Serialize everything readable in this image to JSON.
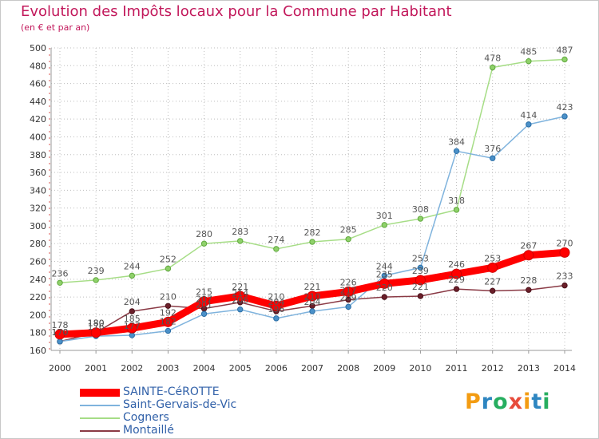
{
  "header": {
    "title": "Evolution des Impôts locaux pour la Commune par Habitant",
    "subtitle": "(en € et par an)"
  },
  "logo": {
    "text": "Proxiti",
    "letters": [
      "P",
      "r",
      "o",
      "x",
      "i",
      "t",
      "i"
    ],
    "colors": [
      "#f39c12",
      "#2e86c1",
      "#27ae60",
      "#e74c3c",
      "#f39c12",
      "#2e86c1",
      "#27ae60"
    ]
  },
  "chart_data": {
    "type": "line",
    "title": "Evolution des Impôts locaux pour la Commune par Habitant",
    "subtitle": "(en € et par an)",
    "xlabel": "",
    "ylabel": "",
    "x": [
      "2000",
      "2001",
      "2002",
      "2003",
      "2004",
      "2005",
      "2006",
      "2007",
      "2008",
      "2009",
      "2010",
      "2011",
      "2012",
      "2013",
      "2014"
    ],
    "ylim": [
      160,
      500
    ],
    "yticks": [
      160,
      180,
      200,
      220,
      240,
      260,
      280,
      300,
      320,
      340,
      360,
      380,
      400,
      420,
      440,
      460,
      480,
      500
    ],
    "grid": "horizontal dotted",
    "legend": "bottom-left",
    "series": [
      {
        "name": "SAINTE-CéROTTE",
        "color": "#ff0000",
        "values": [
          178,
          180,
          185,
          192,
          215,
          221,
          210,
          221,
          226,
          235,
          239,
          246,
          253,
          267,
          270
        ]
      },
      {
        "name": "Saint-Gervais-de-Vic",
        "color": "#4a90c8",
        "values": [
          170,
          176,
          177,
          182,
          201,
          206,
          196,
          204,
          209,
          244,
          253,
          384,
          376,
          414,
          423
        ]
      },
      {
        "name": "Cogners",
        "color": "#8fd16a",
        "values": [
          236,
          239,
          244,
          252,
          280,
          283,
          274,
          282,
          285,
          301,
          308,
          318,
          478,
          485,
          487
        ]
      },
      {
        "name": "Montaillé",
        "color": "#6b1f2a",
        "values": [
          170,
          180,
          204,
          210,
          207,
          214,
          204,
          210,
          217,
          220,
          221,
          229,
          227,
          228,
          233
        ]
      }
    ]
  }
}
